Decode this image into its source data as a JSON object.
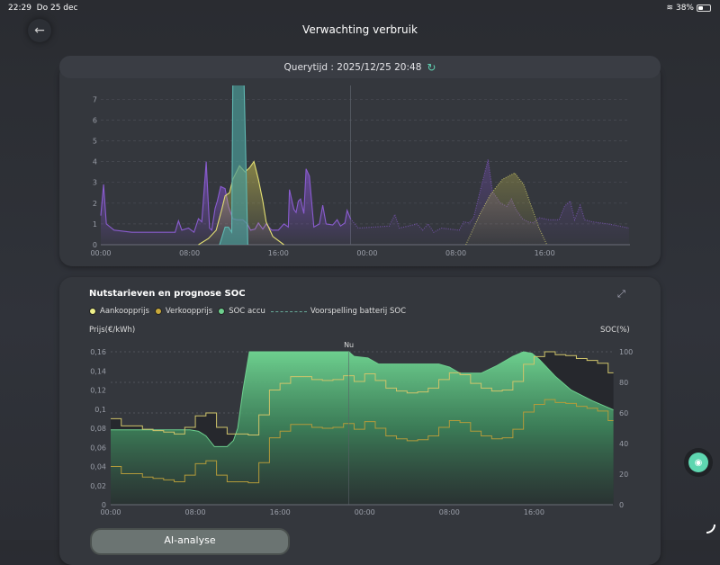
{
  "status_bar": {
    "time": "22:29",
    "date": "Do 25 dec",
    "battery": "38%",
    "battery_level": 0.38
  },
  "header": {
    "title": "Verwachting verbruik",
    "back_icon": "arrow-left-icon"
  },
  "query": {
    "label": "Querytijd : 2025/12/25 20:48",
    "refresh_icon": "refresh-icon"
  },
  "chart_data": [
    {
      "type": "area",
      "y_ticks": [
        "0",
        "1",
        "2",
        "3",
        "4",
        "5",
        "6",
        "7"
      ],
      "x_ticks": [
        "00:00",
        "08:00",
        "16:00",
        "00:00",
        "08:00",
        "16:00"
      ],
      "ylim": [
        0,
        7.6
      ],
      "xlim_hours": [
        0,
        47.7
      ],
      "now_hour": 22.5,
      "grid": true,
      "series": [
        {
          "color": "#8a5cd0",
          "style": "solid",
          "points": [
            [
              0,
              1.4
            ],
            [
              0.25,
              2.9
            ],
            [
              0.5,
              1.0
            ],
            [
              1.2,
              0.7
            ],
            [
              2.8,
              0.6
            ],
            [
              6.7,
              0.6
            ],
            [
              7.0,
              1.15
            ],
            [
              7.3,
              0.7
            ],
            [
              7.9,
              0.8
            ],
            [
              8.4,
              0.6
            ],
            [
              8.8,
              1.25
            ],
            [
              9.1,
              1.1
            ],
            [
              9.5,
              4.0
            ],
            [
              9.8,
              0.8
            ],
            [
              10,
              0.7
            ],
            [
              10.3,
              1.75
            ],
            [
              10.5,
              2.1
            ],
            [
              10.8,
              2.8
            ],
            [
              11.2,
              2.7
            ],
            [
              11.5,
              1.85
            ],
            [
              11.9,
              1.25
            ],
            [
              12.3,
              1.2
            ],
            [
              12.8,
              1.2
            ],
            [
              13.2,
              1.0
            ],
            [
              13.5,
              0.7
            ],
            [
              13.9,
              0.75
            ],
            [
              14.2,
              1.05
            ],
            [
              14.6,
              0.75
            ],
            [
              14.9,
              1.0
            ],
            [
              15.4,
              0.7
            ],
            [
              16,
              0.7
            ],
            [
              16.5,
              1.0
            ],
            [
              16.9,
              0.85
            ],
            [
              17,
              2.65
            ],
            [
              17.4,
              1.7
            ],
            [
              17.6,
              1.55
            ],
            [
              17.8,
              2.1
            ],
            [
              18,
              2.2
            ],
            [
              18.3,
              1.5
            ],
            [
              18.5,
              3.65
            ],
            [
              18.8,
              3.3
            ],
            [
              19.2,
              0.85
            ],
            [
              19.7,
              1.0
            ],
            [
              20,
              1.9
            ],
            [
              20.3,
              1.0
            ],
            [
              20.9,
              0.95
            ],
            [
              21.3,
              1.2
            ],
            [
              21.6,
              0.9
            ],
            [
              22,
              1.05
            ],
            [
              22.2,
              1.65
            ],
            [
              22.5,
              1.25
            ]
          ]
        },
        {
          "color": "#8a5cd0",
          "style": "dotted",
          "points": [
            [
              22.5,
              1.25
            ],
            [
              23.2,
              0.8
            ],
            [
              24.6,
              0.85
            ],
            [
              26,
              0.9
            ],
            [
              26.5,
              1.45
            ],
            [
              26.9,
              0.8
            ],
            [
              28.5,
              1.0
            ],
            [
              29,
              0.7
            ],
            [
              29.5,
              1.0
            ],
            [
              30,
              0.6
            ],
            [
              30.7,
              0.8
            ],
            [
              32.3,
              0.7
            ],
            [
              32.7,
              1.1
            ],
            [
              33.2,
              1.05
            ],
            [
              33.6,
              1.3
            ],
            [
              34.1,
              2.4
            ],
            [
              34.9,
              4.1
            ],
            [
              35.3,
              2.55
            ],
            [
              35.7,
              2.25
            ],
            [
              36,
              2.0
            ],
            [
              36.6,
              1.85
            ],
            [
              37,
              2.2
            ],
            [
              37.4,
              1.7
            ],
            [
              38,
              1.25
            ],
            [
              38.5,
              1.1
            ],
            [
              39,
              1.05
            ],
            [
              39.5,
              1.3
            ],
            [
              40.4,
              1.2
            ],
            [
              41.3,
              1.2
            ],
            [
              41.8,
              1.85
            ],
            [
              42.3,
              2.1
            ],
            [
              42.7,
              1.2
            ],
            [
              43.2,
              1.9
            ],
            [
              43.6,
              1.2
            ],
            [
              44.3,
              1.1
            ],
            [
              45.7,
              1.0
            ],
            [
              46.7,
              0.9
            ],
            [
              47.6,
              0.8
            ]
          ]
        },
        {
          "color": "#e3df72",
          "style": "solid",
          "points": [
            [
              8.8,
              0
            ],
            [
              9.7,
              0.3
            ],
            [
              10.4,
              0.7
            ],
            [
              10.9,
              1.7
            ],
            [
              11.2,
              2.35
            ],
            [
              11.6,
              2.5
            ],
            [
              11.9,
              3.15
            ],
            [
              12.5,
              3.8
            ],
            [
              13,
              3.5
            ],
            [
              13.4,
              3.7
            ],
            [
              13.8,
              4.0
            ],
            [
              14.2,
              3.15
            ],
            [
              14.6,
              2.1
            ],
            [
              14.9,
              1.1
            ],
            [
              15.5,
              0.4
            ],
            [
              16.5,
              0
            ]
          ]
        },
        {
          "color": "#e3df72",
          "style": "dotted",
          "points": [
            [
              32.9,
              0
            ],
            [
              34.1,
              1.4
            ],
            [
              35.1,
              2.4
            ],
            [
              36.2,
              3.15
            ],
            [
              37.3,
              3.45
            ],
            [
              38.1,
              2.9
            ],
            [
              38.8,
              1.85
            ],
            [
              39.5,
              0.8
            ],
            [
              40.2,
              0
            ]
          ]
        },
        {
          "color": "#5fb8b2",
          "style": "solid",
          "points": [
            [
              10.7,
              0
            ],
            [
              11.2,
              0.85
            ],
            [
              11.5,
              0.85
            ],
            [
              11.8,
              0.6
            ],
            [
              11.9,
              8
            ],
            [
              12.9,
              8
            ],
            [
              13.25,
              0
            ]
          ]
        }
      ]
    },
    {
      "type": "line",
      "title": "Nutstarieven en prognose SOC",
      "ylabel": "Prijs(€/kWh)",
      "y2label": "SOC(%)",
      "y_ticks": [
        "0",
        "0,02",
        "0,04",
        "0,06",
        "0,08",
        "0,1",
        "0,12",
        "0,14",
        "0,16"
      ],
      "y2_ticks": [
        "0",
        "20",
        "40",
        "60",
        "80",
        "100"
      ],
      "x_ticks": [
        "00:00",
        "08:00",
        "16:00",
        "00:00",
        "08:00",
        "16:00"
      ],
      "ylim": [
        0,
        0.16
      ],
      "y2lim": [
        0,
        100
      ],
      "now_label": "Nu",
      "now_hour": 22.5,
      "grid": true,
      "legend_position": "top-left",
      "legend": [
        {
          "label": "Aankoopprijs",
          "color": "#eef08a"
        },
        {
          "label": "Verkoopprijs",
          "color": "#c9a93a"
        },
        {
          "label": "SOC accu",
          "color": "#6dcf8e"
        },
        {
          "label": "Voorspelling batterij SOC",
          "color": "#5a9a78"
        }
      ],
      "aankoopprijs": [
        0.09,
        0.0825,
        0.0825,
        0.079,
        0.0775,
        0.076,
        0.074,
        0.081,
        0.093,
        0.096,
        0.081,
        0.074,
        0.074,
        0.073,
        0.094,
        0.12,
        0.127,
        0.134,
        0.134,
        0.131,
        0.13,
        0.131,
        0.135,
        0.129,
        0.137,
        0.13,
        0.122,
        0.119,
        0.117,
        0.118,
        0.122,
        0.131,
        0.138,
        0.136,
        0.127,
        0.122,
        0.119,
        0.12,
        0.129,
        0.147,
        0.155,
        0.16,
        0.157,
        0.156,
        0.153,
        0.151,
        0.148,
        0.138
      ],
      "verkoopprijs": [
        0.04,
        0.0325,
        0.0325,
        0.029,
        0.0275,
        0.026,
        0.024,
        0.031,
        0.043,
        0.046,
        0.031,
        0.024,
        0.024,
        0.023,
        0.044,
        0.07,
        0.077,
        0.084,
        0.084,
        0.081,
        0.08,
        0.081,
        0.085,
        0.079,
        0.087,
        0.08,
        0.072,
        0.069,
        0.067,
        0.068,
        0.072,
        0.081,
        0.088,
        0.086,
        0.077,
        0.072,
        0.069,
        0.07,
        0.079,
        0.097,
        0.105,
        0.11,
        0.107,
        0.106,
        0.103,
        0.101,
        0.098,
        0.088
      ],
      "soc": [
        [
          0,
          49
        ],
        [
          7.5,
          49
        ],
        [
          8.3,
          48
        ],
        [
          9,
          45
        ],
        [
          9.8,
          38
        ],
        [
          11,
          38
        ],
        [
          11.6,
          42
        ],
        [
          12,
          50
        ],
        [
          12.5,
          75
        ],
        [
          13.1,
          100
        ],
        [
          22.5,
          100
        ],
        [
          23,
          97
        ],
        [
          24.3,
          96
        ],
        [
          25.3,
          92
        ],
        [
          31,
          92
        ],
        [
          32,
          90
        ],
        [
          33,
          86
        ],
        [
          35,
          86
        ],
        [
          36.5,
          91
        ],
        [
          38,
          97
        ],
        [
          39,
          100
        ],
        [
          39.8,
          99
        ],
        [
          40.5,
          95
        ],
        [
          42,
          84
        ],
        [
          43.5,
          75
        ],
        [
          45.5,
          68
        ],
        [
          47.5,
          62
        ]
      ]
    }
  ],
  "card2": {
    "title": "Nutstarieven en prognose SOC",
    "ylabel": "Prijs(€/kWh)",
    "y2label": "SOC(%)",
    "legend": [
      "Aankoopprijs",
      "Verkoopprijs",
      "SOC accu",
      "Voorspelling batterij SOC"
    ],
    "expand_icon": "expand-icon"
  },
  "ai_button": "AI-analyse",
  "assistant_icon": "robot-icon"
}
